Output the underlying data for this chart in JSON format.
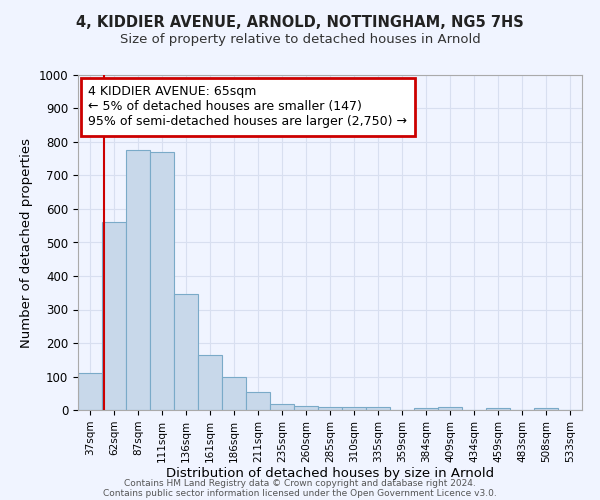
{
  "title1": "4, KIDDIER AVENUE, ARNOLD, NOTTINGHAM, NG5 7HS",
  "title2": "Size of property relative to detached houses in Arnold",
  "xlabel": "Distribution of detached houses by size in Arnold",
  "ylabel": "Number of detached properties",
  "bin_labels": [
    "37sqm",
    "62sqm",
    "87sqm",
    "111sqm",
    "136sqm",
    "161sqm",
    "186sqm",
    "211sqm",
    "235sqm",
    "260sqm",
    "285sqm",
    "310sqm",
    "335sqm",
    "359sqm",
    "384sqm",
    "409sqm",
    "434sqm",
    "459sqm",
    "483sqm",
    "508sqm",
    "533sqm"
  ],
  "bar_values": [
    110,
    560,
    775,
    770,
    345,
    165,
    98,
    55,
    18,
    13,
    10,
    10,
    8,
    0,
    7,
    8,
    0,
    7,
    0,
    7,
    0
  ],
  "bar_color": "#c8d8ea",
  "bar_edge_color": "#7aaac8",
  "vline_x": 1,
  "vline_color": "#cc0000",
  "annotation_text": "4 KIDDIER AVENUE: 65sqm\n← 5% of detached houses are smaller (147)\n95% of semi-detached houses are larger (2,750) →",
  "annotation_box_color": "#ffffff",
  "annotation_box_edge": "#cc0000",
  "ylim": [
    0,
    1000
  ],
  "yticks": [
    0,
    100,
    200,
    300,
    400,
    500,
    600,
    700,
    800,
    900,
    1000
  ],
  "grid_color": "#d8dff0",
  "footer1": "Contains HM Land Registry data © Crown copyright and database right 2024.",
  "footer2": "Contains public sector information licensed under the Open Government Licence v3.0.",
  "bg_color": "#f0f4ff"
}
